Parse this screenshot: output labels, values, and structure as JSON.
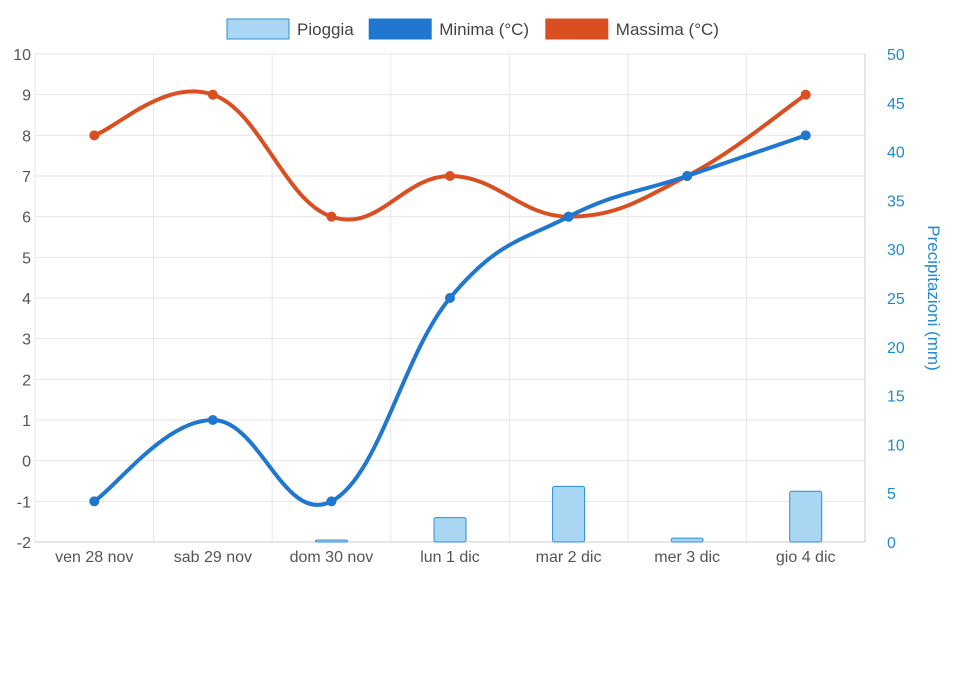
{
  "chart_data": {
    "type": "bar+line",
    "categories": [
      "ven 28 nov",
      "sab 29 nov",
      "dom 30 nov",
      "lun 1 dic",
      "mar 2 dic",
      "mer 3 dic",
      "gio 4 dic"
    ],
    "series": [
      {
        "name": "Pioggia",
        "type": "bar",
        "axis": "right",
        "values": [
          0,
          0,
          0.2,
          2.5,
          5.7,
          0.4,
          5.2
        ],
        "color": "#a9d6f2",
        "border_color": "#2b8fd6"
      },
      {
        "name": "Minima (°C)",
        "type": "line",
        "axis": "left",
        "values": [
          -1,
          1,
          -1,
          4,
          6,
          7,
          8
        ],
        "color": "#1f77d0"
      },
      {
        "name": "Massima (°C)",
        "type": "line",
        "axis": "left",
        "values": [
          8,
          9,
          6,
          7,
          6,
          7,
          9
        ],
        "color": "#d94f22"
      }
    ],
    "y_left": {
      "min": -2,
      "max": 10,
      "step": 1,
      "label": ""
    },
    "y_right": {
      "min": 0,
      "max": 50,
      "step": 5,
      "label": "Precipitazioni (mm)",
      "color": "#1f8ad2"
    },
    "legend_position": "top",
    "grid": true
  }
}
